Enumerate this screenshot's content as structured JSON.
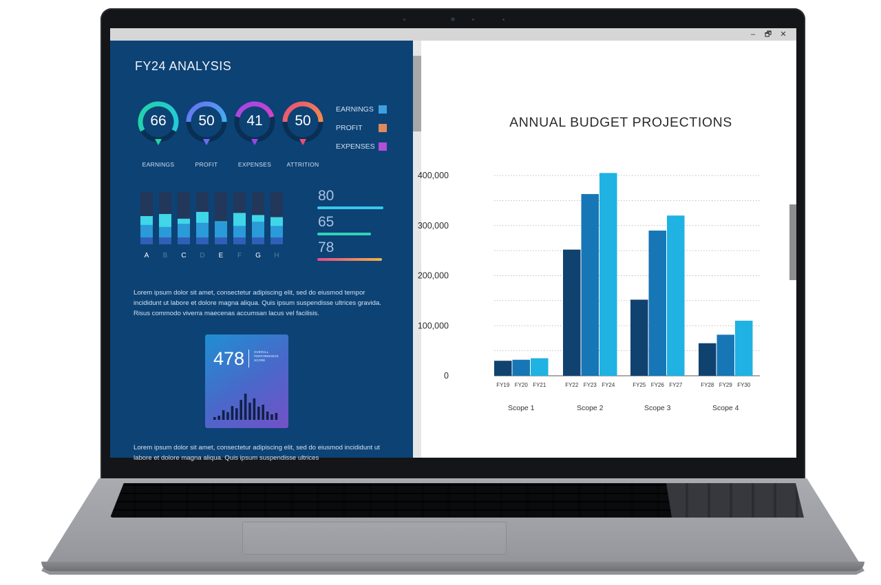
{
  "window": {
    "minimize_glyph": "–",
    "restore_glyph": "🗗",
    "close_glyph": "✕"
  },
  "dashboard": {
    "title": "FY24 ANALYSIS",
    "gauges": [
      {
        "value": "66",
        "label": "EARNINGS",
        "fraction": 0.66,
        "colors": [
          "#23c9e0",
          "#22d3a4"
        ]
      },
      {
        "value": "50",
        "label": "PROFIT",
        "fraction": 0.5,
        "colors": [
          "#36c5f0",
          "#6a6ff2"
        ]
      },
      {
        "value": "41",
        "label": "EXPENSES",
        "fraction": 0.41,
        "colors": [
          "#ff3fb0",
          "#9b47e8"
        ]
      },
      {
        "value": "50",
        "label": "ATTRITION",
        "fraction": 0.5,
        "colors": [
          "#f5a03a",
          "#e8507a"
        ]
      }
    ],
    "legend": [
      {
        "label": "EARNINGS",
        "color": "#3d9fe0"
      },
      {
        "label": "PROFIT",
        "color": "#e08a5a"
      },
      {
        "label": "EXPENSES",
        "color": "#b24ed8"
      }
    ],
    "mini_bar_categories": [
      "A",
      "B",
      "C",
      "D",
      "E",
      "F",
      "G",
      "H"
    ],
    "mini_bars": [
      {
        "top": 0.54,
        "mid": 0.24
      },
      {
        "top": 0.58,
        "mid": 0.2
      },
      {
        "top": 0.49,
        "mid": 0.26
      },
      {
        "top": 0.62,
        "mid": 0.28
      },
      {
        "top": 0.44,
        "mid": 0.3
      },
      {
        "top": 0.6,
        "mid": 0.22
      },
      {
        "top": 0.56,
        "mid": 0.3
      },
      {
        "top": 0.52,
        "mid": 0.22
      }
    ],
    "stats": [
      {
        "value": "80",
        "fraction": 0.8,
        "color": "#38c8ec"
      },
      {
        "value": "65",
        "fraction": 0.65,
        "color": "#2fd3b8"
      },
      {
        "value": "78",
        "fraction": 0.78,
        "color": "#f07050"
      }
    ],
    "lorem_1": "Lorem ipsum dolor sit amet, consectetur adipiscing elit, sed do eiusmod tempor incididunt ut labore et dolore magna aliqua. Quis ipsum suspendisse ultrices gravida. Risus commodo viverra maecenas accumsan lacus vel facilisis.",
    "score": {
      "value": "478",
      "label": "OVERALL PERFORMANCE SCORE"
    },
    "score_histogram": [
      0.1,
      0.15,
      0.35,
      0.28,
      0.5,
      0.42,
      0.72,
      0.95,
      0.62,
      0.78,
      0.48,
      0.55,
      0.3,
      0.2,
      0.25
    ],
    "lorem_2": "Lorem ipsum dolor sit amet, consectetur adipiscing elit, sed do eiusmod incididunt ut labore et dolore magna aliqua. Quis ipsum suspendisse ultrices"
  },
  "chart_data": {
    "type": "bar",
    "title": "ANNUAL BUDGET PROJECTIONS",
    "ylim": [
      0,
      400000
    ],
    "yticks": [
      "0",
      "100,000",
      "200,000",
      "300,000",
      "400,000"
    ],
    "ytick_values": [
      0,
      100000,
      200000,
      300000,
      400000
    ],
    "grid": true,
    "colors": [
      "#10426f",
      "#1776b6",
      "#1fb2e2"
    ],
    "groups": [
      {
        "name": "Scope 1",
        "categories": [
          "FY19",
          "FY20",
          "FY21"
        ],
        "values": [
          30000,
          32000,
          35000
        ]
      },
      {
        "name": "Scope 2",
        "categories": [
          "FY22",
          "FY23",
          "FY24"
        ],
        "values": [
          252000,
          363000,
          405000
        ]
      },
      {
        "name": "Scope 3",
        "categories": [
          "FY25",
          "FY26",
          "FY27"
        ],
        "values": [
          152000,
          290000,
          320000
        ]
      },
      {
        "name": "Scope 4",
        "categories": [
          "FY28",
          "FY29",
          "FY30"
        ],
        "values": [
          65000,
          82000,
          110000
        ]
      }
    ]
  }
}
